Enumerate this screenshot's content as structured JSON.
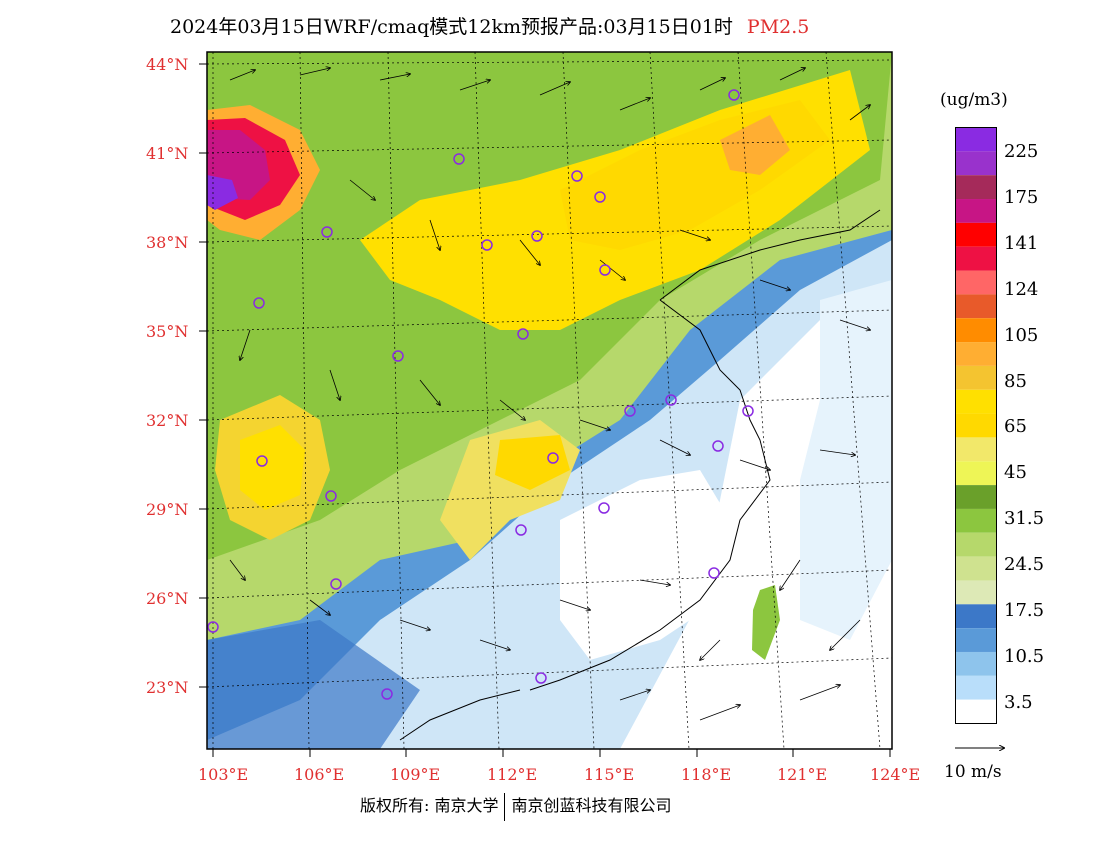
{
  "title": {
    "main": "2024年03月15日WRF/cmaq模式12km预报产品:03月15日01时",
    "pollutant": "PM2.5"
  },
  "lat_labels": [
    "44°N",
    "41°N",
    "38°N",
    "35°N",
    "32°N",
    "29°N",
    "26°N",
    "23°N"
  ],
  "lon_labels": [
    "103°E",
    "106°E",
    "109°E",
    "112°E",
    "115°E",
    "118°E",
    "121°E",
    "124°E"
  ],
  "colorbar": {
    "units": "(ug/m3)",
    "labels": [
      "225",
      "175",
      "141",
      "124",
      "105",
      "85",
      "65",
      "45",
      "31.5",
      "24.5",
      "17.5",
      "10.5",
      "3.5"
    ],
    "colors": [
      "#8a2be2",
      "#9932cc",
      "#a52a5a",
      "#c71585",
      "#ff0000",
      "#ee1144",
      "#ff6666",
      "#e85a2a",
      "#ff8c00",
      "#ffae32",
      "#f4c430",
      "#ffe000",
      "#ffd900",
      "#f2e86a",
      "#eef556",
      "#6aa02a",
      "#8cc63f",
      "#b6d86b",
      "#cfe28f",
      "#dde9b6",
      "#3c78c8",
      "#5a9ad8",
      "#8ec4ec",
      "#b9defa",
      "#ffffff"
    ]
  },
  "wind_reference": "10 m/s",
  "credit": {
    "left": "版权所有: 南京大学",
    "right": "南京创蓝科技有限公司"
  }
}
